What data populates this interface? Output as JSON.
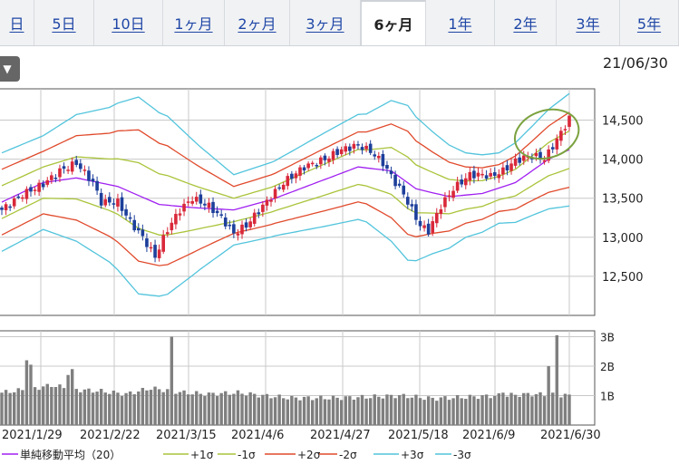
{
  "tabs": [
    {
      "label": "日"
    },
    {
      "label": "5日"
    },
    {
      "label": "10日"
    },
    {
      "label": "1ヶ月"
    },
    {
      "label": "2ヶ月"
    },
    {
      "label": "3ヶ月"
    },
    {
      "label": "6ヶ月",
      "active": true
    },
    {
      "label": "1年"
    },
    {
      "label": "2年"
    },
    {
      "label": "3年"
    },
    {
      "label": "5年"
    }
  ],
  "dropdown_icon": "triangle-down-icon",
  "as_of_date": "21/06/30",
  "chart_data": {
    "type": "candlestick",
    "price_axis": {
      "ticks": [
        "14,500",
        "14,000",
        "13,500",
        "13,000",
        "12,500"
      ],
      "ylim": [
        12000,
        14900
      ]
    },
    "volume_axis": {
      "ticks": [
        "3B",
        "2B",
        "1B"
      ],
      "ylim": [
        0,
        3200000000
      ]
    },
    "x_tick_labels": [
      "2021/1/29",
      "2021/2/22",
      "2021/3/15",
      "2021/4/6",
      "2021/4/27",
      "2021/5/18",
      "2021/6/9",
      "2021/6/30"
    ],
    "colors": {
      "up": "#d9283a",
      "down": "#1d3f9b",
      "ma20": "#a020f0",
      "sigma1": "#a9c43b",
      "sigma2": "#e04a2c",
      "sigma3": "#52c4dc",
      "annotation": "#7ba23f",
      "volume": "#7f7f7f"
    },
    "legend": [
      {
        "label": "単純移動平均（20）",
        "color": "#a020f0"
      },
      {
        "label": "+1σ",
        "color": "#a9c43b"
      },
      {
        "label": "-1σ",
        "color": "#a9c43b"
      },
      {
        "label": "+2σ",
        "color": "#e04a2c"
      },
      {
        "label": "-2σ",
        "color": "#e04a2c"
      },
      {
        "label": "+3σ",
        "color": "#52c4dc"
      },
      {
        "label": "-3σ",
        "color": "#52c4dc"
      }
    ],
    "ma_knots": [
      [
        0,
        13450
      ],
      [
        10,
        13700
      ],
      [
        18,
        13760
      ],
      [
        28,
        13650
      ],
      [
        38,
        13420
      ],
      [
        46,
        13380
      ],
      [
        56,
        13350
      ],
      [
        65,
        13480
      ],
      [
        76,
        13700
      ],
      [
        86,
        13900
      ],
      [
        94,
        13850
      ],
      [
        100,
        13620
      ],
      [
        108,
        13520
      ],
      [
        116,
        13560
      ],
      [
        124,
        13700
      ],
      [
        132,
        14000
      ],
      [
        137,
        14120
      ]
    ],
    "sigma_knots": [
      [
        0,
        210
      ],
      [
        10,
        200
      ],
      [
        18,
        270
      ],
      [
        26,
        330
      ],
      [
        33,
        420
      ],
      [
        40,
        380
      ],
      [
        48,
        260
      ],
      [
        56,
        150
      ],
      [
        66,
        160
      ],
      [
        78,
        200
      ],
      [
        88,
        230
      ],
      [
        94,
        300
      ],
      [
        98,
        330
      ],
      [
        104,
        260
      ],
      [
        112,
        180
      ],
      [
        120,
        150
      ],
      [
        128,
        190
      ],
      [
        137,
        240
      ]
    ],
    "close_knots": [
      [
        0,
        13350
      ],
      [
        5,
        13550
      ],
      [
        10,
        13680
      ],
      [
        14,
        13850
      ],
      [
        18,
        13950
      ],
      [
        22,
        13700
      ],
      [
        24,
        13450
      ],
      [
        28,
        13450
      ],
      [
        31,
        13200
      ],
      [
        34,
        13000
      ],
      [
        37,
        12750
      ],
      [
        40,
        13100
      ],
      [
        43,
        13350
      ],
      [
        46,
        13500
      ],
      [
        50,
        13400
      ],
      [
        53,
        13250
      ],
      [
        56,
        13050
      ],
      [
        59,
        13150
      ],
      [
        63,
        13400
      ],
      [
        68,
        13700
      ],
      [
        73,
        13900
      ],
      [
        78,
        14000
      ],
      [
        82,
        14120
      ],
      [
        86,
        14180
      ],
      [
        89,
        14100
      ],
      [
        92,
        13950
      ],
      [
        95,
        13700
      ],
      [
        97,
        13550
      ],
      [
        99,
        13350
      ],
      [
        101,
        13150
      ],
      [
        103,
        13080
      ],
      [
        106,
        13400
      ],
      [
        109,
        13620
      ],
      [
        113,
        13800
      ],
      [
        116,
        13800
      ],
      [
        118,
        13780
      ],
      [
        121,
        13850
      ],
      [
        124,
        13980
      ],
      [
        128,
        14050
      ],
      [
        131,
        14000
      ],
      [
        134,
        14250
      ],
      [
        137,
        14520
      ]
    ],
    "volume_knots": [
      [
        0,
        1.1
      ],
      [
        8,
        1.25
      ],
      [
        12,
        1.35
      ],
      [
        18,
        1.2
      ],
      [
        24,
        1.15
      ],
      [
        30,
        1.05
      ],
      [
        36,
        1.25
      ],
      [
        44,
        1.1
      ],
      [
        50,
        1.05
      ],
      [
        57,
        1.1
      ],
      [
        63,
        1.0
      ],
      [
        70,
        0.92
      ],
      [
        80,
        0.92
      ],
      [
        88,
        0.95
      ],
      [
        96,
        1.0
      ],
      [
        104,
        0.9
      ],
      [
        112,
        0.95
      ],
      [
        120,
        1.0
      ],
      [
        128,
        1.05
      ],
      [
        137,
        1.0
      ]
    ],
    "volume_spikes": [
      [
        6,
        2.2
      ],
      [
        7,
        2.05
      ],
      [
        16,
        1.7
      ],
      [
        17,
        1.9
      ],
      [
        41,
        3.0
      ],
      [
        121,
        1.1
      ],
      [
        132,
        2.0
      ],
      [
        134,
        3.05
      ]
    ],
    "annotation": {
      "type": "ellipse",
      "cx_bar": 132,
      "cy_value": 14320
    }
  }
}
